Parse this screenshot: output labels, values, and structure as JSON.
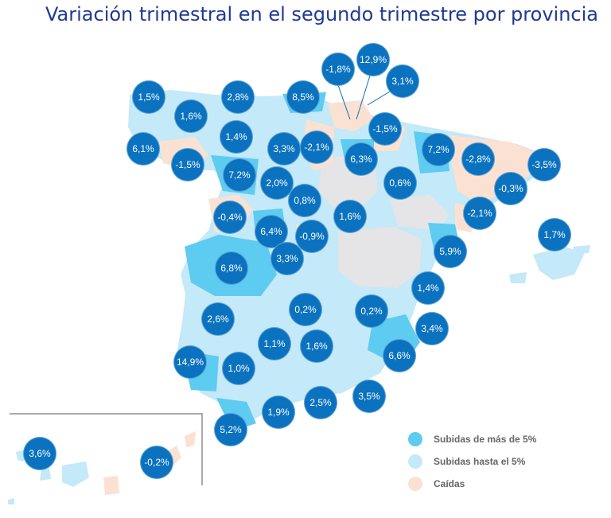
{
  "title": "Variación trimestral en el segundo trimestre por provincia",
  "colors": {
    "high_rise": "#5ecbf0",
    "moderate_rise": "#c4e9f8",
    "fall": "#fbe1d2",
    "no_data": "#e5e4e7",
    "badge": "#0a72bf"
  },
  "legend": [
    {
      "label": "Subidas de más de 5%",
      "color": "#5ecbf0"
    },
    {
      "label": "Subidas hasta el 5%",
      "color": "#c4e9f8"
    },
    {
      "label": "Caídas",
      "color": "#fbe1d2"
    }
  ],
  "provinces": [
    {
      "value": "1,5%"
    },
    {
      "value": "2,8%"
    },
    {
      "value": "8,5%"
    },
    {
      "value": "-1,8%"
    },
    {
      "value": "12,9%"
    },
    {
      "value": "3,1%"
    },
    {
      "value": "1,6%"
    },
    {
      "value": "1,4%"
    },
    {
      "value": "3,3%"
    },
    {
      "value": "-2,1%"
    },
    {
      "value": "-1,5%"
    },
    {
      "value": "6,1%"
    },
    {
      "value": "-1,5%"
    },
    {
      "value": "6,3%"
    },
    {
      "value": "7,2%"
    },
    {
      "value": "-2,8%"
    },
    {
      "value": "-3,5%"
    },
    {
      "value": "7,2%"
    },
    {
      "value": "2,0%"
    },
    {
      "value": "0,6%"
    },
    {
      "value": "-0,3%"
    },
    {
      "value": "0,8%"
    },
    {
      "value": "-0,4%"
    },
    {
      "value": "1,6%"
    },
    {
      "value": "-2,1%"
    },
    {
      "value": "6,4%"
    },
    {
      "value": "-0,9%"
    },
    {
      "value": "1,7%"
    },
    {
      "value": "3,3%"
    },
    {
      "value": "5,9%"
    },
    {
      "value": "6,8%"
    },
    {
      "value": "1,4%"
    },
    {
      "value": "0,2%"
    },
    {
      "value": "0,2%"
    },
    {
      "value": "2,6%"
    },
    {
      "value": "3,4%"
    },
    {
      "value": "1,1%"
    },
    {
      "value": "1,6%"
    },
    {
      "value": "6,6%"
    },
    {
      "value": "14,9%"
    },
    {
      "value": "1,0%"
    },
    {
      "value": "3,5%"
    },
    {
      "value": "2,5%"
    },
    {
      "value": "1,9%"
    },
    {
      "value": "5,2%"
    },
    {
      "value": "3,6%"
    },
    {
      "value": "-0,2%"
    }
  ]
}
